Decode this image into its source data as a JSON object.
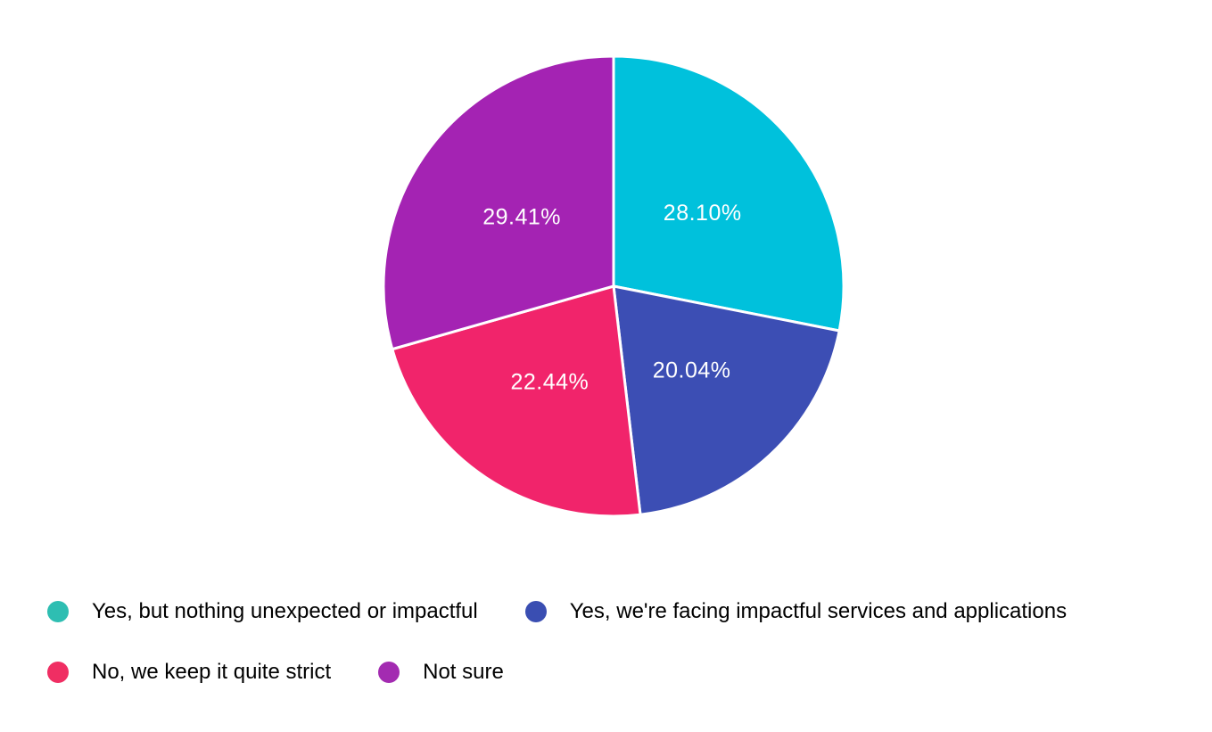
{
  "chart_data": {
    "type": "pie",
    "title": "",
    "unit": "%",
    "direction": "clockwise",
    "start_angle_deg": 0,
    "legend_position": "bottom-left",
    "background_color": "#FFFFFF",
    "slice_border_color": "#FFFFFF",
    "slice_label_color": "#FFFFFF",
    "legend_text_color": "#000000",
    "categories": [
      "Yes, but nothing unexpected or impactful",
      "Yes, we're facing impactful services and applications",
      "No, we keep it quite strict",
      "Not sure"
    ],
    "values": [
      28.1,
      20.04,
      22.44,
      29.41
    ],
    "labels": [
      "28.10%",
      "20.04%",
      "22.44%",
      "29.41%"
    ],
    "colors": [
      "#00C1DC",
      "#3C4EB4",
      "#F1246B",
      "#A423B3"
    ],
    "legend_dot_colors": [
      "#2EBEB2",
      "#3A4EB2",
      "#F02E63",
      "#A32BB1"
    ],
    "legend_rows": [
      [
        0,
        1
      ],
      [
        2,
        3
      ]
    ]
  }
}
